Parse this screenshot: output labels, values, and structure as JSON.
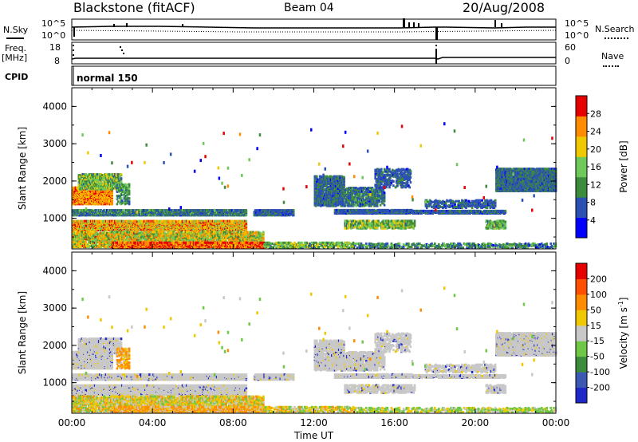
{
  "header": {
    "station": "Blackstone (fitACF)",
    "beam": "Beam 04",
    "date": "20/Aug/2008"
  },
  "top_panels": {
    "nsky_label": "N.Sky",
    "nsearch_label": "N.Search",
    "freq_label": "Freq.",
    "freq_unit": "[MHz]",
    "nave_label": "Nave",
    "cpid_label": "CPID",
    "cpid_value": "normal 150",
    "count_ticks": [
      "10^5",
      "10^0"
    ],
    "freq_ticks": [
      "18",
      "8"
    ],
    "nave_ticks": [
      "60",
      "0"
    ]
  },
  "chart_data": [
    {
      "type": "heatmap",
      "name": "power",
      "ylabel": "Slant Range [km]",
      "xlabel": "",
      "ylim": [
        180,
        4500
      ],
      "yticks": [
        "1000",
        "2000",
        "3000",
        "4000"
      ],
      "colorbar": {
        "label": "Power [dB]",
        "ticks": [
          "4",
          "8",
          "12",
          "16",
          "20",
          "24",
          "28"
        ],
        "range": [
          0,
          30
        ],
        "colors": [
          "#0000ff",
          "#2d50b4",
          "#3c8c3c",
          "#6ec85a",
          "#f0c800",
          "#ff8c00",
          "#e60000"
        ]
      }
    },
    {
      "type": "heatmap",
      "name": "velocity",
      "ylabel": "Slant Range [km]",
      "xlabel": "Time UT",
      "ylim": [
        180,
        4500
      ],
      "yticks": [
        "1000",
        "2000",
        "3000",
        "4000"
      ],
      "xticks": [
        "00:00",
        "04:00",
        "08:00",
        "12:00",
        "16:00",
        "20:00",
        "00:00"
      ],
      "colorbar": {
        "label": "Velocity [m s",
        "label_sup": "-1",
        "label_end": "]",
        "ticks": [
          "200",
          "100",
          "50",
          "15",
          "-15",
          "-50",
          "-100",
          "-200"
        ],
        "colors": [
          "#1e28c8",
          "#3c5ab4",
          "#3c8c3c",
          "#6ec846",
          "#c8c8c8",
          "#f0c800",
          "#ff8c00",
          "#ff5000",
          "#e60000"
        ]
      }
    }
  ]
}
